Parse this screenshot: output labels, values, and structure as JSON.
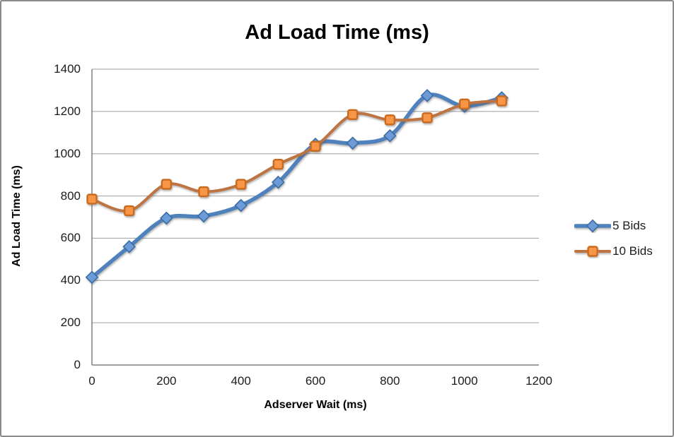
{
  "window": {
    "background": "#ffffff",
    "border_color": "#8a8a8a"
  },
  "chart_data": {
    "type": "line",
    "title": "Ad Load Time (ms)",
    "xlabel": "Adserver Wait (ms)",
    "ylabel": "Ad Load Time (ms)",
    "x": [
      0,
      100,
      200,
      300,
      400,
      500,
      600,
      700,
      800,
      900,
      1000,
      1100
    ],
    "series": [
      {
        "name": "5 Bids",
        "marker": "diamond",
        "line_color": "#4F81BD",
        "marker_fill": "#6C9BD8",
        "marker_stroke": "#3A6DA6",
        "line_width": 5.5,
        "values": [
          415,
          560,
          695,
          705,
          755,
          865,
          1045,
          1050,
          1085,
          1275,
          1225,
          1265
        ]
      },
      {
        "name": "10 Bids",
        "marker": "square",
        "line_color": "#BE7342",
        "marker_fill": "#F79646",
        "marker_stroke": "#C96A1E",
        "line_width": 4,
        "values": [
          785,
          730,
          855,
          820,
          855,
          950,
          1035,
          1185,
          1160,
          1170,
          1235,
          1250
        ]
      }
    ],
    "xlim": [
      0,
      1200
    ],
    "ylim": [
      0,
      1400
    ],
    "x_ticks": [
      0,
      200,
      400,
      600,
      800,
      1000,
      1200
    ],
    "y_ticks": [
      0,
      200,
      400,
      600,
      800,
      1000,
      1200,
      1400
    ],
    "grid": "horizontal",
    "grid_color": "#9d9d9d",
    "axis_color": "#808080",
    "tick_text_color": "#1c1c1c",
    "legend_position": "right",
    "smooth": true
  }
}
